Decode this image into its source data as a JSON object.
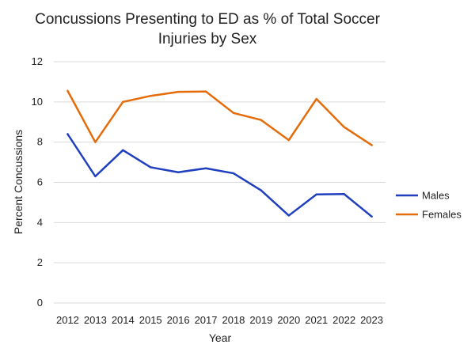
{
  "chart_data": {
    "type": "line",
    "title": "Concussions Presenting to ED as % of Total Soccer Injuries by Sex",
    "title_lines": [
      "Concussions Presenting to ED as % of Total Soccer",
      "Injuries by Sex"
    ],
    "xlabel": "Year",
    "ylabel": "Percent Concussions",
    "x": [
      "2012",
      "2013",
      "2014",
      "2015",
      "2016",
      "2017",
      "2018",
      "2019",
      "2020",
      "2021",
      "2022",
      "2023"
    ],
    "ylim": [
      0,
      12
    ],
    "yticks": [
      "0",
      "2",
      "4",
      "6",
      "8",
      "10",
      "12"
    ],
    "grid": true,
    "legend_position": "right",
    "series": [
      {
        "name": "Males",
        "color": "#1f3fbf",
        "values": [
          8.4,
          6.3,
          7.6,
          6.75,
          6.5,
          6.7,
          6.45,
          5.6,
          4.35,
          5.4,
          5.42,
          4.3
        ]
      },
      {
        "name": "Females",
        "color": "#e46c0a",
        "values": [
          10.55,
          8.0,
          10.0,
          10.3,
          10.5,
          10.52,
          9.45,
          9.1,
          8.1,
          10.15,
          8.75,
          7.85
        ]
      }
    ]
  }
}
